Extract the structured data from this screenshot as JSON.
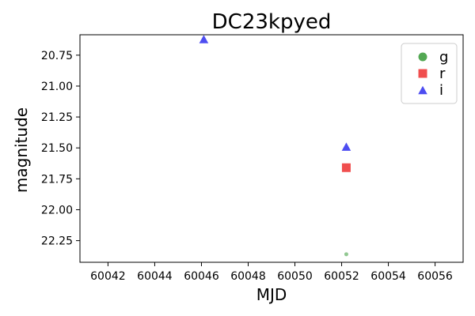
{
  "chart_data": {
    "type": "scatter",
    "title": "DC23kpyed",
    "xlabel": "MJD",
    "ylabel": "magnitude",
    "xlim": [
      60040.8,
      60057.2
    ],
    "ylim": [
      22.425,
      20.585
    ],
    "y_inverted": true,
    "x_ticks": [
      60042,
      60044,
      60046,
      60048,
      60050,
      60052,
      60054,
      60056
    ],
    "y_ticks": [
      20.75,
      21.0,
      21.25,
      21.5,
      21.75,
      22.0,
      22.25
    ],
    "y_tick_labels": [
      "20.75",
      "21.00",
      "21.25",
      "21.50",
      "21.75",
      "22.00",
      "22.25"
    ],
    "legend_position": "top-right",
    "grid": false,
    "series": [
      {
        "name": "g",
        "marker": "circle",
        "color": "#4aa34a",
        "points": [
          {
            "x": 60052.2,
            "y": 22.36,
            "faint": true
          }
        ]
      },
      {
        "name": "r",
        "marker": "square",
        "color": "#ef4444",
        "points": [
          {
            "x": 60052.2,
            "y": 21.66
          }
        ]
      },
      {
        "name": "i",
        "marker": "triangle",
        "color": "#4343f0",
        "points": [
          {
            "x": 60046.1,
            "y": 20.62
          },
          {
            "x": 60052.2,
            "y": 21.49
          }
        ]
      }
    ]
  }
}
